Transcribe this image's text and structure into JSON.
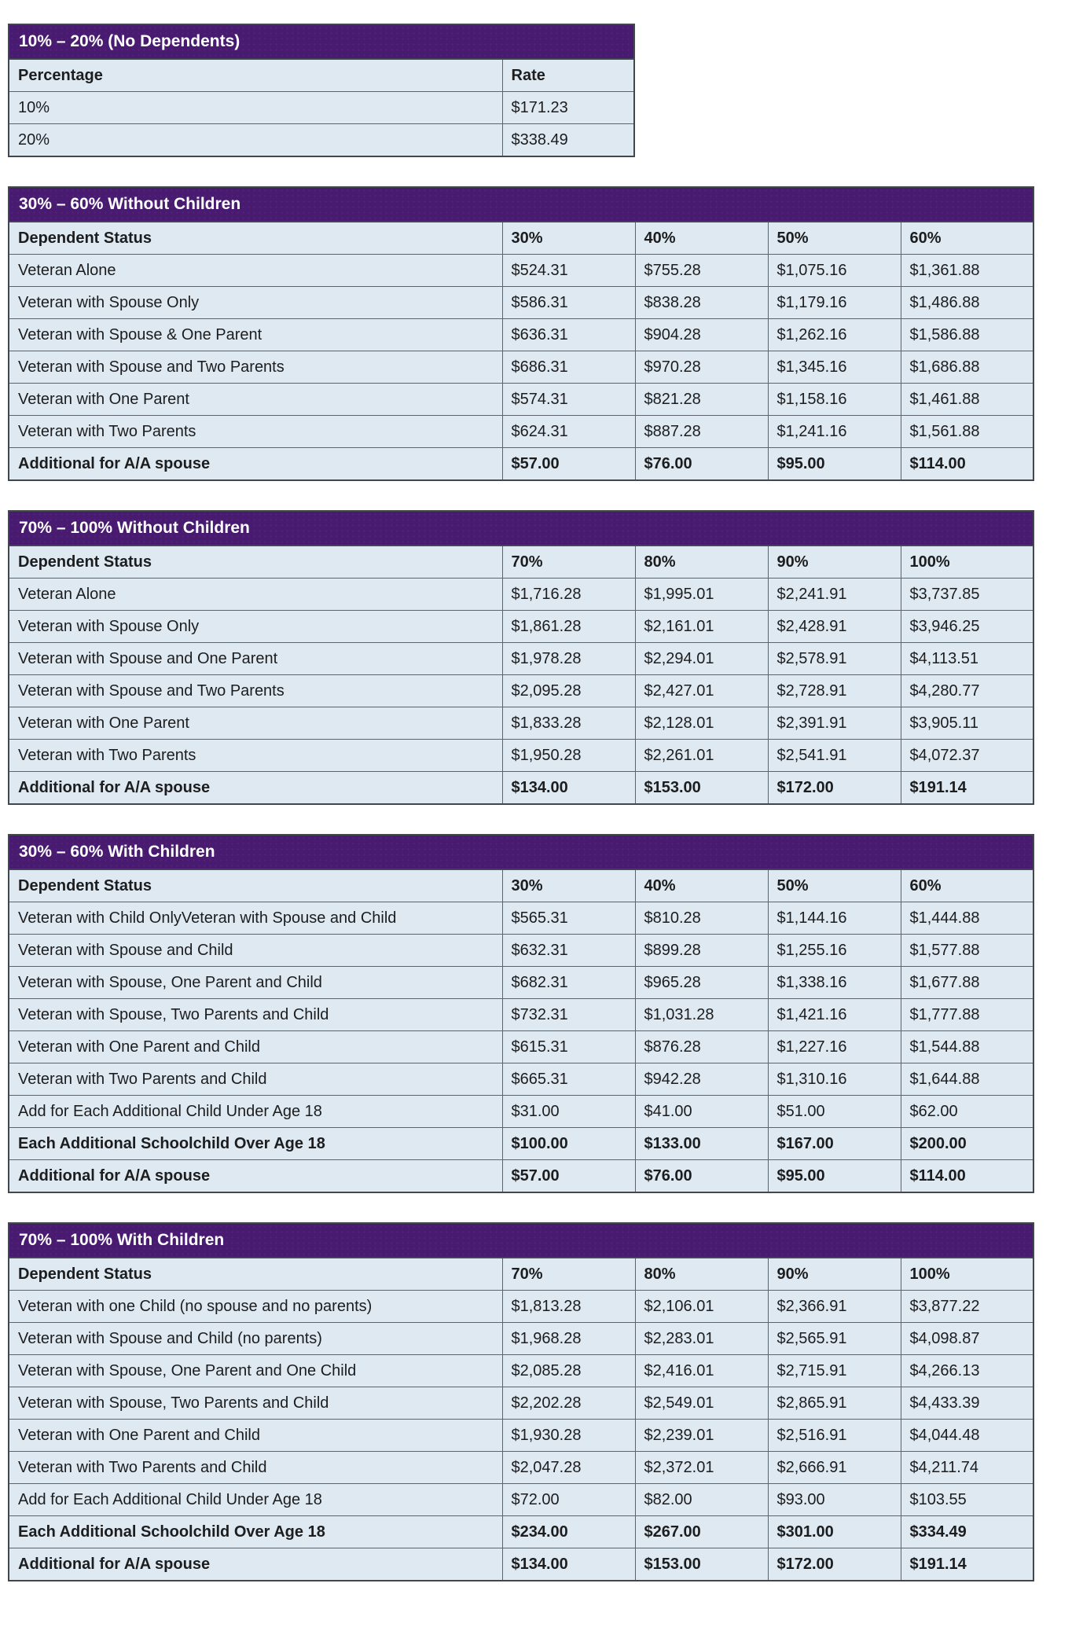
{
  "colors": {
    "band_background": "#481a70",
    "band_text": "#ffffff",
    "cell_background": "#dfe9f1",
    "inner_border": "#5c636e",
    "outer_border": "#40474f",
    "text": "#1c1d1f"
  },
  "tables": [
    {
      "title": "10% – 20% (No Dependents)",
      "narrow": true,
      "columns": [
        "Percentage",
        "Rate"
      ],
      "rows": [
        {
          "bold": false,
          "cells": [
            "10%",
            "$171.23"
          ]
        },
        {
          "bold": false,
          "cells": [
            "20%",
            "$338.49"
          ]
        }
      ]
    },
    {
      "title": "30% – 60% Without Children",
      "narrow": false,
      "columns": [
        "Dependent Status",
        "30%",
        "40%",
        "50%",
        "60%"
      ],
      "rows": [
        {
          "bold": false,
          "cells": [
            "Veteran Alone",
            "$524.31",
            "$755.28",
            "$1,075.16",
            "$1,361.88"
          ]
        },
        {
          "bold": false,
          "cells": [
            "Veteran with Spouse Only",
            "$586.31",
            "$838.28",
            "$1,179.16",
            "$1,486.88"
          ]
        },
        {
          "bold": false,
          "cells": [
            "Veteran with Spouse & One Parent",
            "$636.31",
            "$904.28",
            "$1,262.16",
            "$1,586.88"
          ]
        },
        {
          "bold": false,
          "cells": [
            "Veteran with Spouse and Two Parents",
            "$686.31",
            "$970.28",
            "$1,345.16",
            "$1,686.88"
          ]
        },
        {
          "bold": false,
          "cells": [
            "Veteran with One Parent",
            "$574.31",
            "$821.28",
            "$1,158.16",
            "$1,461.88"
          ]
        },
        {
          "bold": false,
          "cells": [
            "Veteran with Two Parents",
            "$624.31",
            "$887.28",
            "$1,241.16",
            "$1,561.88"
          ]
        },
        {
          "bold": true,
          "cells": [
            "Additional for A/A spouse",
            "$57.00",
            "$76.00",
            "$95.00",
            "$114.00"
          ]
        }
      ]
    },
    {
      "title": "70% – 100% Without Children",
      "narrow": false,
      "columns": [
        "Dependent Status",
        "70%",
        "80%",
        "90%",
        "100%"
      ],
      "rows": [
        {
          "bold": false,
          "cells": [
            "Veteran Alone",
            "$1,716.28",
            "$1,995.01",
            "$2,241.91",
            "$3,737.85"
          ]
        },
        {
          "bold": false,
          "cells": [
            "Veteran with Spouse Only",
            "$1,861.28",
            "$2,161.01",
            "$2,428.91",
            "$3,946.25"
          ]
        },
        {
          "bold": false,
          "cells": [
            "Veteran with Spouse and One Parent",
            "$1,978.28",
            "$2,294.01",
            "$2,578.91",
            "$4,113.51"
          ]
        },
        {
          "bold": false,
          "cells": [
            "Veteran with Spouse and Two Parents",
            "$2,095.28",
            "$2,427.01",
            "$2,728.91",
            "$4,280.77"
          ]
        },
        {
          "bold": false,
          "cells": [
            "Veteran with One Parent",
            "$1,833.28",
            "$2,128.01",
            "$2,391.91",
            "$3,905.11"
          ]
        },
        {
          "bold": false,
          "cells": [
            "Veteran with Two Parents",
            "$1,950.28",
            "$2,261.01",
            "$2,541.91",
            "$4,072.37"
          ]
        },
        {
          "bold": true,
          "cells": [
            "Additional for A/A spouse",
            "$134.00",
            "$153.00",
            "$172.00",
            "$191.14"
          ]
        }
      ]
    },
    {
      "title": "30% – 60% With Children",
      "narrow": false,
      "columns": [
        "Dependent Status",
        "30%",
        "40%",
        "50%",
        "60%"
      ],
      "rows": [
        {
          "bold": false,
          "cells": [
            "Veteran with Child OnlyVeteran with Spouse and Child",
            "$565.31",
            "$810.28",
            "$1,144.16",
            "$1,444.88"
          ]
        },
        {
          "bold": false,
          "cells": [
            "Veteran with Spouse and Child",
            "$632.31",
            "$899.28",
            "$1,255.16",
            "$1,577.88"
          ]
        },
        {
          "bold": false,
          "cells": [
            "Veteran with Spouse, One Parent and Child",
            "$682.31",
            "$965.28",
            "$1,338.16",
            "$1,677.88"
          ]
        },
        {
          "bold": false,
          "cells": [
            "Veteran with Spouse, Two Parents and Child",
            "$732.31",
            "$1,031.28",
            "$1,421.16",
            "$1,777.88"
          ]
        },
        {
          "bold": false,
          "cells": [
            "Veteran with One Parent and Child",
            "$615.31",
            "$876.28",
            "$1,227.16",
            "$1,544.88"
          ]
        },
        {
          "bold": false,
          "cells": [
            "Veteran with Two Parents and Child",
            "$665.31",
            "$942.28",
            "$1,310.16",
            "$1,644.88"
          ]
        },
        {
          "bold": false,
          "cells": [
            "Add for Each Additional Child Under Age 18",
            "$31.00",
            "$41.00",
            "$51.00",
            "$62.00"
          ]
        },
        {
          "bold": true,
          "cells": [
            "Each Additional Schoolchild Over Age 18",
            "$100.00",
            "$133.00",
            "$167.00",
            "$200.00"
          ]
        },
        {
          "bold": true,
          "cells": [
            "Additional for A/A spouse",
            "$57.00",
            "$76.00",
            "$95.00",
            "$114.00"
          ]
        }
      ]
    },
    {
      "title": "70% – 100% With Children",
      "narrow": false,
      "columns": [
        "Dependent Status",
        "70%",
        "80%",
        "90%",
        "100%"
      ],
      "rows": [
        {
          "bold": false,
          "cells": [
            "Veteran with one Child (no spouse and no parents)",
            "$1,813.28",
            "$2,106.01",
            "$2,366.91",
            "$3,877.22"
          ]
        },
        {
          "bold": false,
          "cells": [
            "Veteran with Spouse and Child (no parents)",
            "$1,968.28",
            "$2,283.01",
            "$2,565.91",
            "$4,098.87"
          ]
        },
        {
          "bold": false,
          "cells": [
            "Veteran with Spouse, One Parent and One Child",
            "$2,085.28",
            "$2,416.01",
            "$2,715.91",
            "$4,266.13"
          ]
        },
        {
          "bold": false,
          "cells": [
            "Veteran with Spouse, Two Parents and Child",
            "$2,202.28",
            "$2,549.01",
            "$2,865.91",
            "$4,433.39"
          ]
        },
        {
          "bold": false,
          "cells": [
            "Veteran with One Parent and Child",
            "$1,930.28",
            "$2,239.01",
            "$2,516.91",
            "$4,044.48"
          ]
        },
        {
          "bold": false,
          "cells": [
            "Veteran with Two Parents and Child",
            "$2,047.28",
            "$2,372.01",
            "$2,666.91",
            "$4,211.74"
          ]
        },
        {
          "bold": false,
          "cells": [
            "Add for Each Additional Child Under Age 18",
            "$72.00",
            "$82.00",
            "$93.00",
            "$103.55"
          ]
        },
        {
          "bold": true,
          "cells": [
            "Each Additional Schoolchild Over Age 18",
            "$234.00",
            "$267.00",
            "$301.00",
            "$334.49"
          ]
        },
        {
          "bold": true,
          "cells": [
            "Additional for A/A spouse",
            "$134.00",
            "$153.00",
            "$172.00",
            "$191.14"
          ]
        }
      ]
    }
  ]
}
